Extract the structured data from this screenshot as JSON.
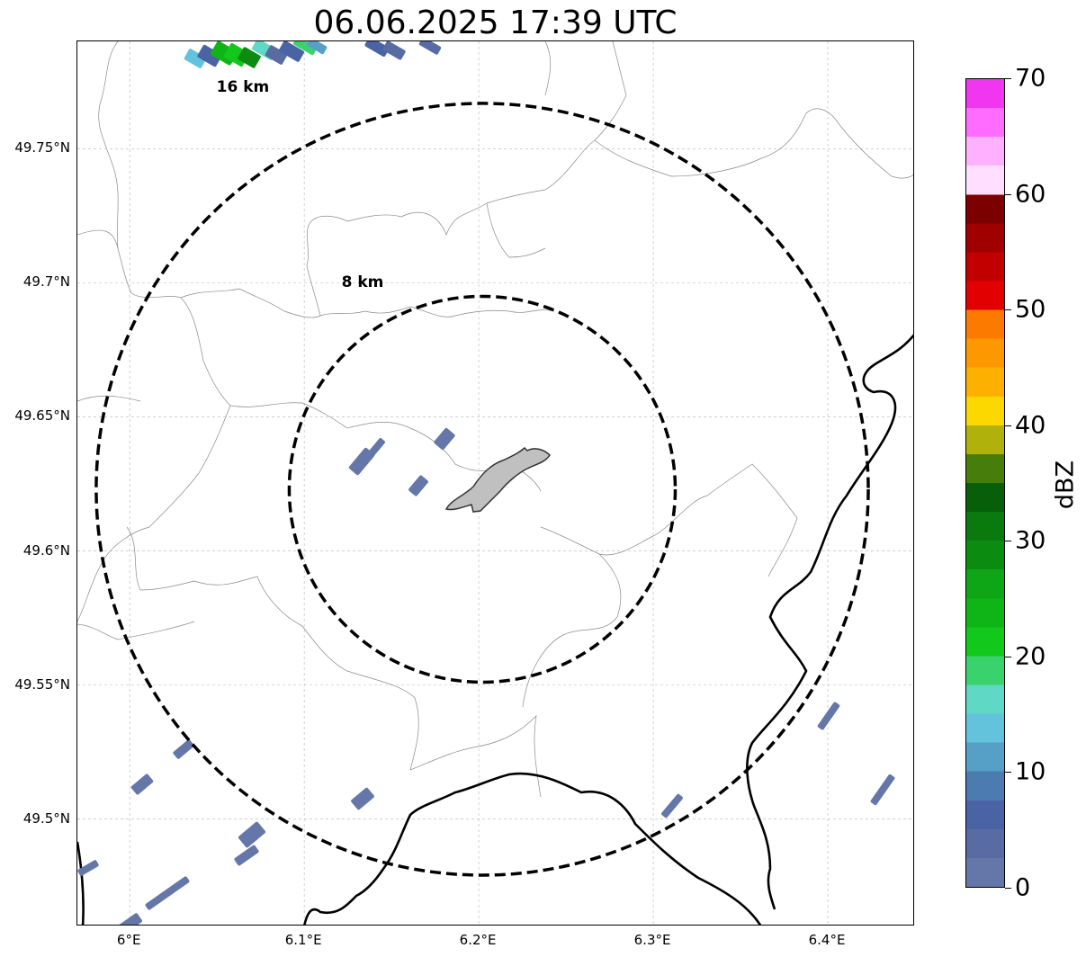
{
  "title": "06.06.2025 17:39 UTC",
  "map": {
    "lon_range": [
      5.97,
      6.45
    ],
    "lat_range": [
      49.46,
      49.79
    ],
    "center": {
      "lon": 6.202,
      "lat": 49.623
    },
    "lat_ticks": [
      {
        "value": 49.5,
        "label": "49.5°N"
      },
      {
        "value": 49.55,
        "label": "49.55°N"
      },
      {
        "value": 49.6,
        "label": "49.6°N"
      },
      {
        "value": 49.65,
        "label": "49.65°N"
      },
      {
        "value": 49.7,
        "label": "49.7°N"
      },
      {
        "value": 49.75,
        "label": "49.75°N"
      }
    ],
    "lon_ticks": [
      {
        "value": 6.0,
        "label": "6°E"
      },
      {
        "value": 6.1,
        "label": "6.1°E"
      },
      {
        "value": 6.2,
        "label": "6.2°E"
      },
      {
        "value": 6.3,
        "label": "6.3°E"
      },
      {
        "value": 6.4,
        "label": "6.4°E"
      }
    ],
    "range_rings": [
      {
        "label": "8 km",
        "radius_km": 8
      },
      {
        "label": "16 km",
        "radius_km": 16
      }
    ],
    "gridlines": true,
    "highlighted_area_color": "#c0c0c0"
  },
  "colorbar": {
    "label": "dBZ",
    "min": 0,
    "max": 70,
    "ticks": [
      "0",
      "10",
      "20",
      "30",
      "40",
      "50",
      "60",
      "70"
    ],
    "colors": [
      "#6577a8",
      "#586ca3",
      "#4a63a4",
      "#4c7bb0",
      "#56a0c8",
      "#63c3dc",
      "#5fd8c5",
      "#3ad26d",
      "#12c81a",
      "#0fb517",
      "#0ea516",
      "#0b8c10",
      "#0a7a0f",
      "#075f0a",
      "#477e0b",
      "#b0b10a",
      "#fdd800",
      "#fdb000",
      "#fd9800",
      "#fd7a00",
      "#e30000",
      "#c20000",
      "#a00000",
      "#7d0000",
      "#ffdeff",
      "#ffb0ff",
      "#ff6cff",
      "#f036f0"
    ]
  }
}
